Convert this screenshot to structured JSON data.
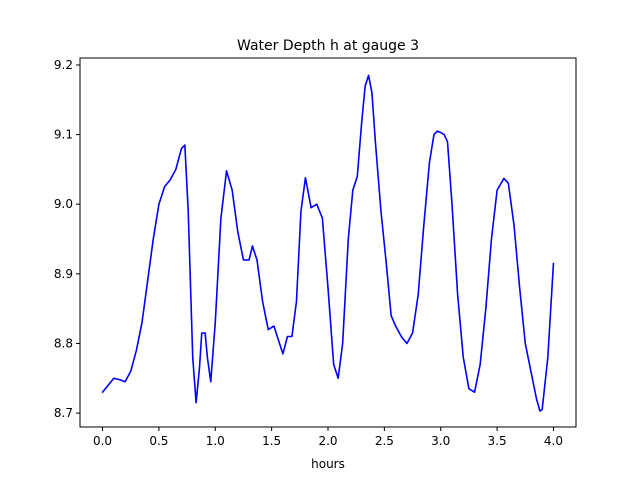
{
  "chart_data": {
    "type": "line",
    "title": "Water Depth h at gauge 3",
    "xlabel": "hours",
    "ylabel": "",
    "xlim": [
      -0.2,
      4.2
    ],
    "ylim": [
      8.68,
      9.21
    ],
    "xticks": [
      0.0,
      0.5,
      1.0,
      1.5,
      2.0,
      2.5,
      3.0,
      3.5,
      4.0
    ],
    "xtick_labels": [
      "0.0",
      "0.5",
      "1.0",
      "1.5",
      "2.0",
      "2.5",
      "3.0",
      "3.5",
      "4.0"
    ],
    "yticks": [
      8.7,
      8.8,
      8.9,
      9.0,
      9.1,
      9.2
    ],
    "ytick_labels": [
      "8.7",
      "8.8",
      "8.9",
      "9.0",
      "9.1",
      "9.2"
    ],
    "grid": false,
    "series": [
      {
        "color": "#0000ff",
        "x": [
          0.0,
          0.05,
          0.1,
          0.15,
          0.2,
          0.25,
          0.3,
          0.35,
          0.4,
          0.45,
          0.5,
          0.55,
          0.6,
          0.65,
          0.7,
          0.73,
          0.76,
          0.8,
          0.83,
          0.86,
          0.88,
          0.91,
          0.93,
          0.96,
          1.0,
          1.05,
          1.1,
          1.15,
          1.2,
          1.25,
          1.3,
          1.33,
          1.37,
          1.42,
          1.47,
          1.52,
          1.57,
          1.6,
          1.64,
          1.68,
          1.72,
          1.76,
          1.8,
          1.85,
          1.9,
          1.95,
          2.0,
          2.05,
          2.09,
          2.13,
          2.18,
          2.22,
          2.26,
          2.3,
          2.33,
          2.36,
          2.39,
          2.42,
          2.47,
          2.52,
          2.56,
          2.6,
          2.65,
          2.7,
          2.75,
          2.8,
          2.85,
          2.9,
          2.94,
          2.97,
          3.0,
          3.03,
          3.06,
          3.1,
          3.15,
          3.2,
          3.25,
          3.3,
          3.35,
          3.4,
          3.45,
          3.5,
          3.56,
          3.6,
          3.65,
          3.7,
          3.75,
          3.8,
          3.85,
          3.88,
          3.9,
          3.95,
          4.0
        ],
        "y": [
          8.73,
          8.74,
          8.75,
          8.748,
          8.745,
          8.76,
          8.79,
          8.83,
          8.89,
          8.95,
          9.0,
          9.025,
          9.035,
          9.05,
          9.08,
          9.085,
          8.99,
          8.78,
          8.715,
          8.765,
          8.815,
          8.815,
          8.78,
          8.745,
          8.83,
          8.98,
          9.048,
          9.02,
          8.96,
          8.92,
          8.92,
          8.94,
          8.92,
          8.86,
          8.82,
          8.825,
          8.8,
          8.785,
          8.81,
          8.81,
          8.86,
          8.99,
          9.038,
          8.995,
          9.0,
          8.98,
          8.88,
          8.77,
          8.75,
          8.8,
          8.95,
          9.02,
          9.04,
          9.12,
          9.17,
          9.185,
          9.16,
          9.09,
          8.99,
          8.91,
          8.84,
          8.825,
          8.81,
          8.8,
          8.815,
          8.87,
          8.97,
          9.06,
          9.1,
          9.105,
          9.103,
          9.1,
          9.09,
          9.0,
          8.87,
          8.78,
          8.735,
          8.73,
          8.77,
          8.85,
          8.95,
          9.02,
          9.037,
          9.03,
          8.97,
          8.88,
          8.8,
          8.76,
          8.72,
          8.703,
          8.705,
          8.78,
          8.915
        ]
      }
    ]
  }
}
